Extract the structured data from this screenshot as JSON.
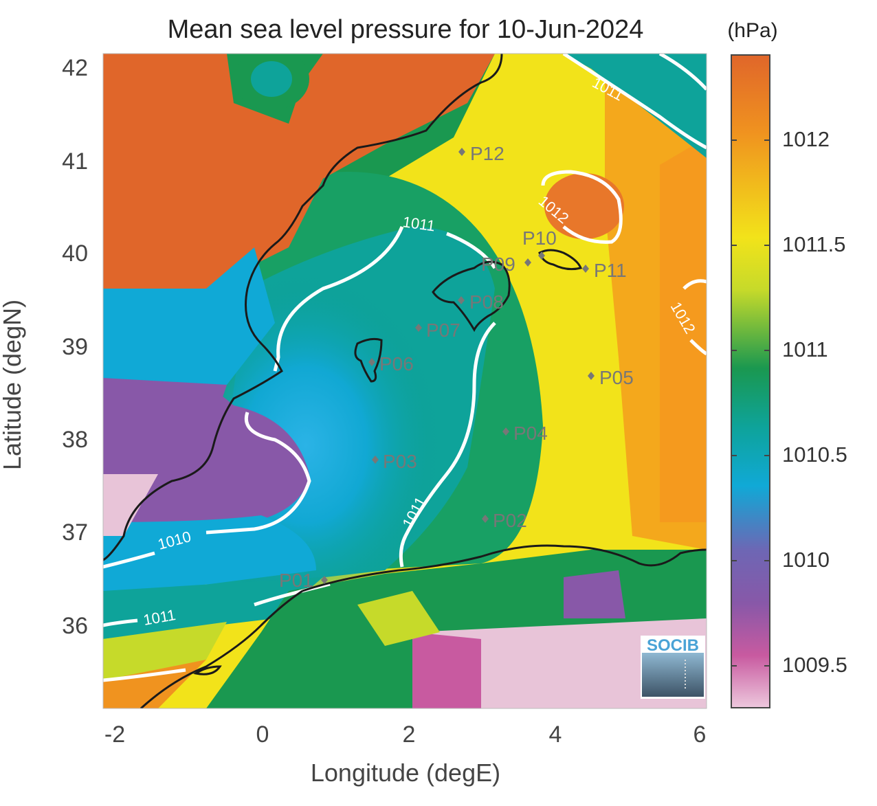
{
  "title": "Mean sea level pressure for 10-Jun-2024",
  "colorbar": {
    "unit": "(hPa)",
    "ticks": [
      "1012",
      "1011.5",
      "1011",
      "1010.5",
      "1010",
      "1009.5"
    ]
  },
  "axes": {
    "xlabel": "Longitude (degE)",
    "ylabel": "Latitude (degN)",
    "xticks": [
      "-2",
      "0",
      "2",
      "4",
      "6"
    ],
    "yticks": [
      "42",
      "41",
      "40",
      "39",
      "38",
      "37",
      "36"
    ]
  },
  "contour_labels": [
    "1011",
    "1011",
    "1012",
    "1012",
    "1011",
    "1010",
    "1011"
  ],
  "stations": [
    {
      "label": "P01"
    },
    {
      "label": "P02"
    },
    {
      "label": "P03"
    },
    {
      "label": "P04"
    },
    {
      "label": "P05"
    },
    {
      "label": "P06"
    },
    {
      "label": "P07"
    },
    {
      "label": "P08"
    },
    {
      "label": "P09"
    },
    {
      "label": "P10"
    },
    {
      "label": "P11"
    },
    {
      "label": "P12"
    }
  ],
  "logo": {
    "text": "SOCIB"
  },
  "colors": {
    "high": "#e0662a",
    "mid_high": "#f2e31a",
    "mid": "#1a9850",
    "mid_low": "#10a9d6",
    "low": "#8858a8",
    "lowest": "#e8c4d8",
    "contour": "#ffffff",
    "coastline": "#1a1a1a",
    "station": "#777777"
  }
}
